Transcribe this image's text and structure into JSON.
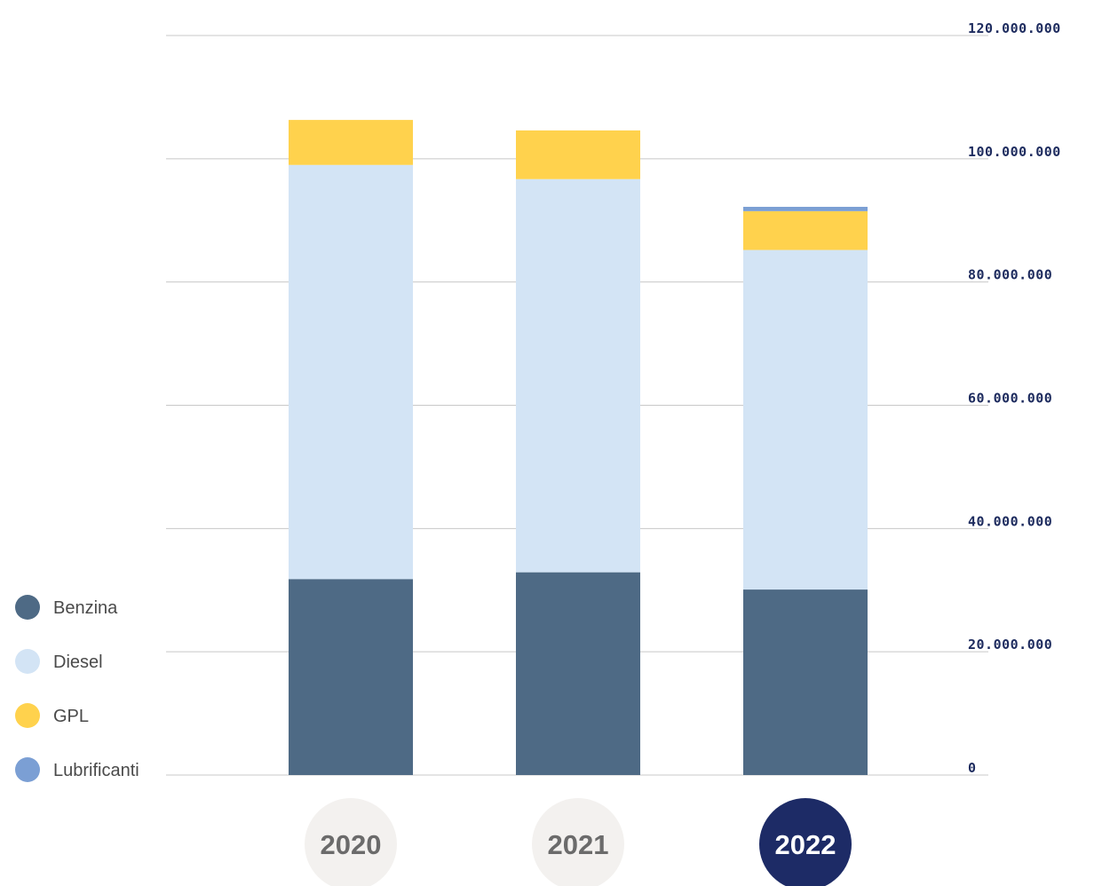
{
  "chart_data": {
    "type": "bar",
    "stacked": true,
    "categories": [
      "2020",
      "2021",
      "2022"
    ],
    "highlighted_category": "2022",
    "series": [
      {
        "name": "Benzina",
        "color": "#4e6a85",
        "values": [
          31800000,
          32900000,
          30100000
        ]
      },
      {
        "name": "Diesel",
        "color": "#d3e4f5",
        "values": [
          67200000,
          63800000,
          55100000
        ]
      },
      {
        "name": "GPL",
        "color": "#ffd24d",
        "values": [
          7300000,
          7900000,
          6300000
        ]
      },
      {
        "name": "Lubrificanti",
        "color": "#7b9fd4",
        "values": [
          0,
          0,
          700000
        ]
      }
    ],
    "y_ticks": [
      "0",
      "20.000.000",
      "40.000.000",
      "60.000.000",
      "80.000.000",
      "100.000.000",
      "120.000.000"
    ],
    "ylim": [
      0,
      120000000
    ],
    "y_axis_position": "right",
    "legend_position": "bottom-left",
    "grid": true,
    "title": "",
    "xlabel": "",
    "ylabel": ""
  },
  "colors": {
    "grid": "#c8c8c8",
    "tick_text": "#1d2b5e",
    "legend_text": "#4a4a4a",
    "year_badge_bg": "#f3f1ef",
    "year_badge_text": "#6b6b6b",
    "year_badge_active_bg": "#1d2b66",
    "year_badge_active_text": "#ffffff"
  }
}
